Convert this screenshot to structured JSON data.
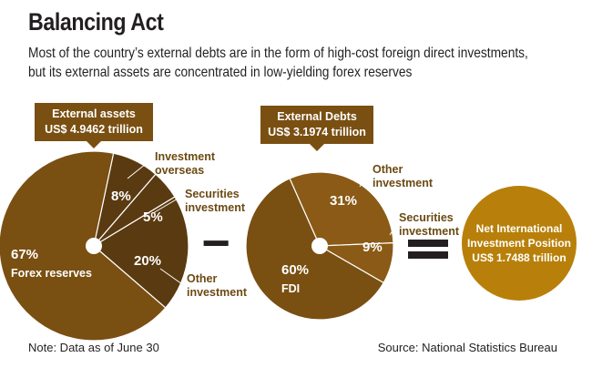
{
  "header": {
    "title": "Balancing Act",
    "subtitle_line1": "Most of the country’s external debts are in the form of high-cost foreign direct investments,",
    "subtitle_line2": "but its external assets are concentrated in low-yielding forex reserves"
  },
  "footer": {
    "note": "Note: Data as of June 30",
    "source": "Source: National Statistics Bureau"
  },
  "colors": {
    "dark_brown": "#5a3a10",
    "mid_brown": "#7a4f12",
    "light_brown": "#8a5a16",
    "gold": "#b8800a",
    "label_text": "#6b4a12",
    "callout_bg": "#7a4f12"
  },
  "operators": {
    "minus": "−",
    "equals": "="
  },
  "chart_data": [
    {
      "type": "pie",
      "callout": "External assets\nUS$ 4.9462 trillion",
      "slices": [
        {
          "name": "Forex reserves",
          "value": 67,
          "label": "67%"
        },
        {
          "name": "Investment overseas",
          "value": 8,
          "label": "8%"
        },
        {
          "name": "Securities investment",
          "value": 5,
          "label": "5%"
        },
        {
          "name": "Other investment",
          "value": 20,
          "label": "20%"
        }
      ]
    },
    {
      "type": "pie",
      "callout": "External Debts\nUS$ 3.1974 trillion",
      "slices": [
        {
          "name": "FDI",
          "value": 60,
          "label": "60%"
        },
        {
          "name": "Other investment",
          "value": 31,
          "label": "31%"
        },
        {
          "name": "Securities investment",
          "value": 9,
          "label": "9%"
        }
      ]
    },
    {
      "type": "pie",
      "callout": "Net International\nInvestment Position\nUS$ 1.7488 trillion",
      "slices": [
        {
          "name": "Net International Investment Position",
          "value": 100,
          "label": ""
        }
      ]
    }
  ]
}
